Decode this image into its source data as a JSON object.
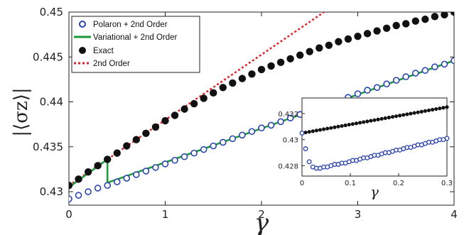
{
  "chart_data": [
    {
      "type": "scatter",
      "title": "",
      "xlabel": "γ",
      "ylabel": "|⟨σz⟩|",
      "xlim": [
        0,
        4
      ],
      "ylim": [
        0.4285,
        0.45
      ],
      "xticks": [
        "0",
        "1",
        "2",
        "3",
        "4"
      ],
      "xtick_values": [
        0,
        1,
        2,
        3,
        4
      ],
      "yticks": [
        "0.43",
        "0.435",
        "0.44",
        "0.445",
        "0.45"
      ],
      "ytick_values": [
        0.43,
        0.435,
        0.44,
        0.445,
        0.45
      ],
      "legend": {
        "placement": "top-left",
        "entries": [
          {
            "label": "Polaron + 2nd Order",
            "marker": "open-circle",
            "color": "#2a44b0"
          },
          {
            "label": "Variational + 2nd Order",
            "marker": "line",
            "color": "#1a9a3a"
          },
          {
            "label": "Exact",
            "marker": "filled-circle",
            "color": "#111111"
          },
          {
            "label": "2nd Order",
            "marker": "dashed-line",
            "color": "#e0202a"
          }
        ]
      },
      "series": [
        {
          "name": "Polaron + 2nd Order",
          "style": "open-circle",
          "color": "#2a44b0",
          "x": [
            0,
            0.1,
            0.2,
            0.3,
            0.4,
            0.5,
            0.6,
            0.7,
            0.8,
            0.9,
            1.0,
            1.1,
            1.2,
            1.3,
            1.4,
            1.5,
            1.6,
            1.7,
            1.8,
            1.9,
            2.0,
            2.1,
            2.2,
            2.3,
            2.4,
            2.5,
            2.6,
            2.7,
            2.8,
            2.9,
            3.0,
            3.1,
            3.2,
            3.3,
            3.4,
            3.5,
            3.6,
            3.7,
            3.8,
            3.9,
            4.0
          ],
          "y": [
            0.4292,
            0.4296,
            0.43,
            0.4304,
            0.4307,
            0.4311,
            0.4315,
            0.4319,
            0.4323,
            0.4327,
            0.4331,
            0.4335,
            0.4339,
            0.4343,
            0.4347,
            0.4351,
            0.4355,
            0.4359,
            0.4363,
            0.4367,
            0.4371,
            0.4374,
            0.4378,
            0.4382,
            0.4386,
            0.439,
            0.4394,
            0.4397,
            0.4401,
            0.4405,
            0.4409,
            0.4413,
            0.4416,
            0.442,
            0.4424,
            0.4428,
            0.4432,
            0.4435,
            0.4439,
            0.4442,
            0.4446
          ]
        },
        {
          "name": "Variational + 2nd Order",
          "style": "line",
          "color": "#1a9a3a",
          "x": [
            0,
            0.4,
            0.4,
            4.0
          ],
          "y": [
            0.4305,
            0.4336,
            0.431,
            0.4446
          ]
        },
        {
          "name": "Exact",
          "style": "filled-circle",
          "color": "#111111",
          "x": [
            0,
            0.1,
            0.2,
            0.3,
            0.4,
            0.5,
            0.6,
            0.7,
            0.8,
            0.9,
            1.0,
            1.1,
            1.2,
            1.3,
            1.4,
            1.5,
            1.6,
            1.7,
            1.8,
            1.9,
            2.0,
            2.1,
            2.2,
            2.3,
            2.4,
            2.5,
            2.6,
            2.7,
            2.8,
            2.9,
            3.0,
            3.1,
            3.2,
            3.3,
            3.4,
            3.5,
            3.6,
            3.7,
            3.8,
            3.9,
            4.0
          ],
          "y": [
            0.4307,
            0.4314,
            0.4322,
            0.4329,
            0.4336,
            0.4343,
            0.4351,
            0.4358,
            0.4365,
            0.4372,
            0.4379,
            0.4385,
            0.4392,
            0.4398,
            0.4404,
            0.441,
            0.4416,
            0.4421,
            0.4426,
            0.4431,
            0.4436,
            0.444,
            0.4444,
            0.4448,
            0.4452,
            0.4456,
            0.446,
            0.4463,
            0.4467,
            0.447,
            0.4473,
            0.4476,
            0.4479,
            0.4482,
            0.4485,
            0.4487,
            0.449,
            0.4492,
            0.4495,
            0.4497,
            0.45
          ]
        },
        {
          "name": "2nd Order",
          "style": "dashed-line",
          "color": "#e0202a",
          "x": [
            0,
            2.65
          ],
          "y": [
            0.4307,
            0.45
          ]
        }
      ]
    },
    {
      "type": "scatter",
      "title": "",
      "xlabel": "γ",
      "ylabel": "",
      "xlim": [
        0,
        0.3
      ],
      "ylim": [
        0.4272,
        0.4332
      ],
      "xticks": [
        "0",
        "0.1",
        "0.2",
        "0.3"
      ],
      "xtick_values": [
        0,
        0.1,
        0.2,
        0.3
      ],
      "yticks": [
        "0.428",
        "0.43",
        "0.432"
      ],
      "ytick_values": [
        0.428,
        0.43,
        0.432
      ],
      "series": [
        {
          "name": "Exact (inset)",
          "style": "filled-circle",
          "color": "#111111",
          "x_start": 0,
          "x_step": 0.0075,
          "count": 41,
          "y_start": 0.4305,
          "y_end": 0.4325
        },
        {
          "name": "Polaron + 2nd Order (inset)",
          "style": "open-circle",
          "color": "#2a44b0",
          "x": [
            0,
            0.0075,
            0.015,
            0.0225,
            0.03,
            0.0375,
            0.045,
            0.0525,
            0.06,
            0.0675,
            0.075,
            0.0825,
            0.09,
            0.0975,
            0.105,
            0.1125,
            0.12,
            0.1275,
            0.135,
            0.1425,
            0.15,
            0.1575,
            0.165,
            0.1725,
            0.18,
            0.1875,
            0.195,
            0.2025,
            0.21,
            0.2175,
            0.225,
            0.2325,
            0.24,
            0.2475,
            0.255,
            0.2625,
            0.27,
            0.2775,
            0.285,
            0.2925,
            0.3
          ],
          "y": [
            0.4305,
            0.4293,
            0.4283,
            0.4279,
            0.4278,
            0.4278,
            0.4279,
            0.4279,
            0.428,
            0.4281,
            0.4281,
            0.4282,
            0.4282,
            0.4283,
            0.4284,
            0.4284,
            0.4285,
            0.4286,
            0.4286,
            0.4287,
            0.4288,
            0.4288,
            0.4289,
            0.429,
            0.429,
            0.4291,
            0.4292,
            0.4292,
            0.4293,
            0.4294,
            0.4294,
            0.4295,
            0.4296,
            0.4296,
            0.4297,
            0.4298,
            0.4298,
            0.4299,
            0.43,
            0.43,
            0.4301
          ]
        }
      ]
    }
  ]
}
